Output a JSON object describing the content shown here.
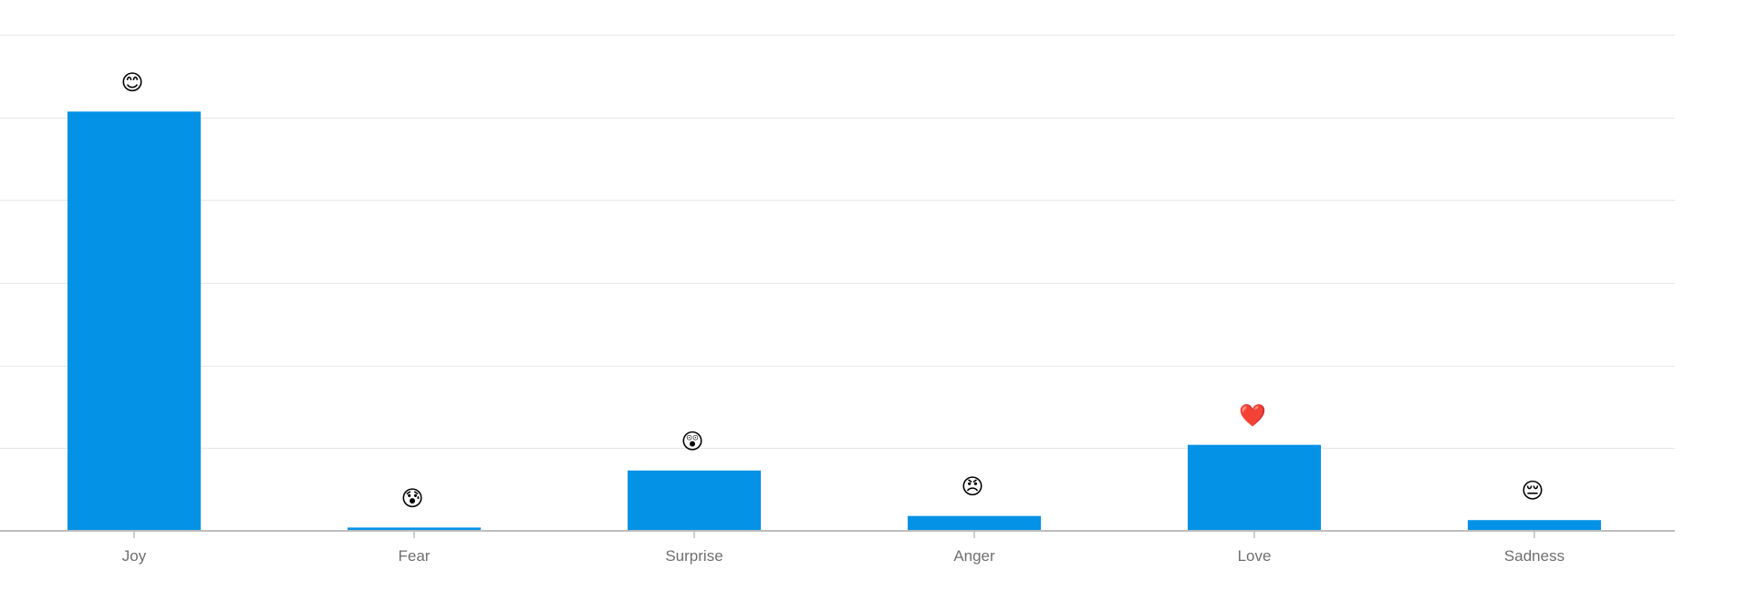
{
  "chart_data": {
    "type": "bar",
    "title": "",
    "xlabel": "",
    "ylabel": "",
    "categories": [
      "Joy",
      "Fear",
      "Surprise",
      "Anger",
      "Love",
      "Sadness"
    ],
    "values": [
      5.07,
      0.04,
      0.73,
      0.18,
      1.04,
      0.13
    ],
    "emoji_labels": [
      "😊",
      "😰",
      "😲",
      "😠",
      "❤️",
      "😔"
    ],
    "ylim": [
      0,
      6
    ],
    "ytick_values": [
      0,
      1,
      2,
      3,
      4,
      5,
      6
    ],
    "ytick_labels_visible": false,
    "grid": true,
    "bar_color": "#0392e6",
    "grid_color": "#e6e6e6",
    "axis_color": "#bdbdbd",
    "label_color": "#6f6f6f"
  }
}
